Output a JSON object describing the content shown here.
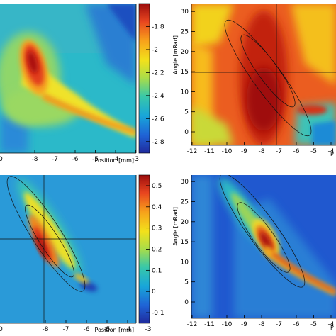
{
  "chart_data": [
    {
      "type": "heatmap",
      "panel": "top-left",
      "xlabel": "Position [mm]",
      "ylabel": "",
      "xticks": [
        "-8",
        "-7",
        "-6",
        "-5",
        "-4",
        "-3"
      ],
      "xticks_partial": "0",
      "xlim": [
        -10,
        -2.3
      ],
      "colorbar": {
        "ticks": [
          "-1.8",
          "-2",
          "-2.2",
          "-2.4",
          "-2.6",
          "-2.8"
        ],
        "range": [
          -2.9,
          -1.6
        ]
      },
      "colormap": [
        "#1f2a9c",
        "#1f63d6",
        "#18a6d9",
        "#39c8a8",
        "#a8dd4a",
        "#f2e11b",
        "#f7a21b",
        "#e8451f",
        "#9c0d0d"
      ]
    },
    {
      "type": "heatmap",
      "panel": "top-right",
      "xlabel": "P",
      "ylabel": "Angle [mRad]",
      "xticks": [
        "-12",
        "-11",
        "-10",
        "-9",
        "-8",
        "-7",
        "-6",
        "-5",
        "-4"
      ],
      "yticks": [
        "0",
        "5",
        "10",
        "15",
        "20",
        "25",
        "30"
      ],
      "ylim": [
        -3,
        33
      ],
      "overlay": "ellipses"
    },
    {
      "type": "heatmap",
      "panel": "bottom-left",
      "xlabel": "Position [mm]",
      "ylabel": "",
      "xticks": [
        "-8",
        "-7",
        "-6",
        "-5",
        "-4",
        "-3"
      ],
      "xticks_partial": "0",
      "colorbar": {
        "ticks": [
          "0.5",
          "0.4",
          "0.3",
          "0.2",
          "0.1",
          "0",
          "-0.1"
        ],
        "range": [
          -0.15,
          0.55
        ]
      },
      "overlay": "ellipses"
    },
    {
      "type": "heatmap",
      "panel": "bottom-right",
      "xlabel": "P",
      "ylabel": "Angle [mRad]",
      "xticks": [
        "-12",
        "-11",
        "-10",
        "-9",
        "-8",
        "-7",
        "-6",
        "-5",
        "-4"
      ],
      "yticks": [
        "0",
        "5",
        "10",
        "15",
        "20",
        "25",
        "30"
      ],
      "ylim": [
        -3,
        33
      ],
      "overlay": "ellipses"
    }
  ]
}
